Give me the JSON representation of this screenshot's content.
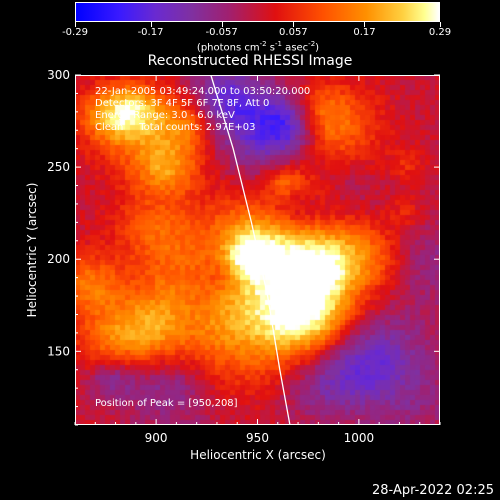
{
  "chart_data": {
    "type": "heatmap",
    "title": "Reconstructed RHESSI Image",
    "xlabel": "Heliocentric X (arcsec)",
    "ylabel": "Heliocentric Y (arcsec)",
    "xlim": [
      860,
      1040
    ],
    "ylim": [
      110,
      300
    ],
    "x_ticks": [
      "900",
      "950",
      "1000"
    ],
    "x_tick_values": [
      900,
      950,
      1000
    ],
    "y_ticks": [
      "150",
      "200",
      "250",
      "300"
    ],
    "y_tick_values": [
      150,
      200,
      250,
      300
    ],
    "colorbar": {
      "ticks": [
        "-0.29",
        "-0.17",
        "-0.057",
        "0.057",
        "0.17",
        "0.29"
      ],
      "tick_values": [
        -0.29,
        -0.17,
        -0.057,
        0.057,
        0.17,
        0.29
      ],
      "range": [
        -0.29,
        0.29
      ],
      "unit_base": "(photons cm",
      "unit_exp1": "-2",
      "unit_mid1": " s",
      "unit_exp2": "-1",
      "unit_mid2": " asec",
      "unit_exp3": "-2",
      "unit_end": ")"
    },
    "info": {
      "time_range": "22-Jan-2005 03:49:24.000 to 03:50:20.000",
      "detectors": "Detectors: 3F 4F 5F 6F 7F 8F, Att 0",
      "energy": "Energy Range: 3.0 - 6.0 keV",
      "method": "Clean     Total counts: 2.97E+03"
    },
    "peak": {
      "x": 950,
      "y": 208,
      "label": "Position of Peak = [950,208]"
    },
    "limb_curve": [
      [
        927,
        300
      ],
      [
        938,
        260
      ],
      [
        947,
        220
      ],
      [
        955,
        180
      ],
      [
        961,
        140
      ],
      [
        966,
        110
      ]
    ]
  },
  "footer": {
    "date": "28-Apr-2022 02:25"
  }
}
